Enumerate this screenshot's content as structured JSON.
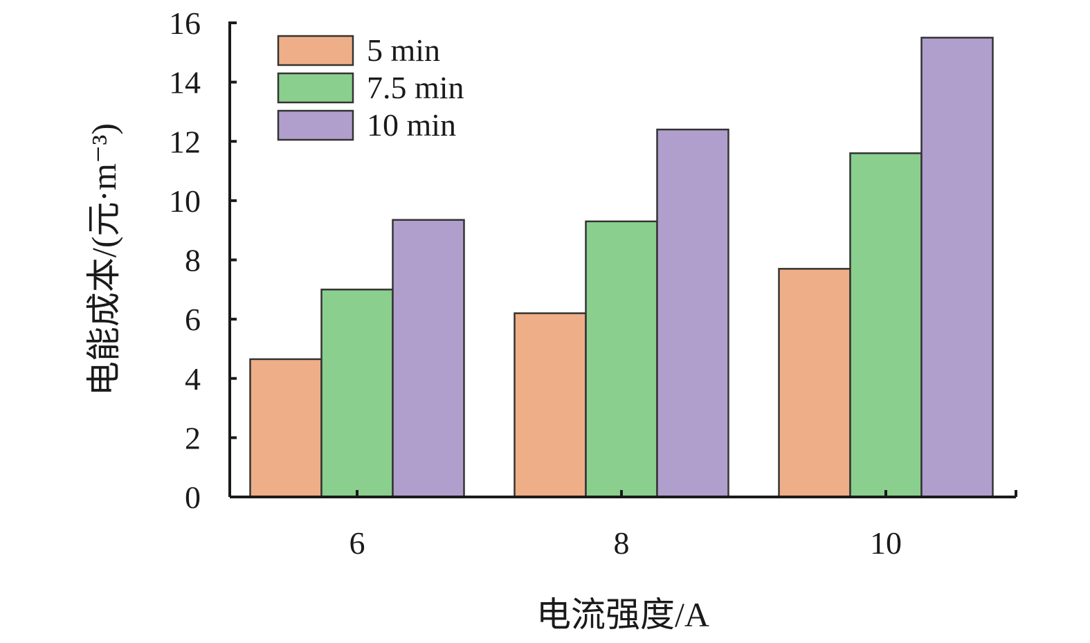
{
  "chart_data": {
    "type": "bar",
    "title": "",
    "xlabel": "电流强度/A",
    "ylabel": "电能成本/(元·m⁻³)",
    "categories": [
      "6",
      "8",
      "10"
    ],
    "ylim": [
      0,
      16
    ],
    "yticks": [
      0,
      2,
      4,
      6,
      8,
      10,
      12,
      14,
      16
    ],
    "grid": false,
    "legend_position": "top-left",
    "series": [
      {
        "name": "5 min",
        "color": "#eeae87",
        "values": [
          4.65,
          6.2,
          7.7
        ]
      },
      {
        "name": "7.5 min",
        "color": "#8bcf8e",
        "values": [
          7.0,
          9.3,
          11.6
        ]
      },
      {
        "name": "10 min",
        "color": "#b09fcd",
        "values": [
          9.35,
          12.4,
          15.5
        ]
      }
    ]
  }
}
